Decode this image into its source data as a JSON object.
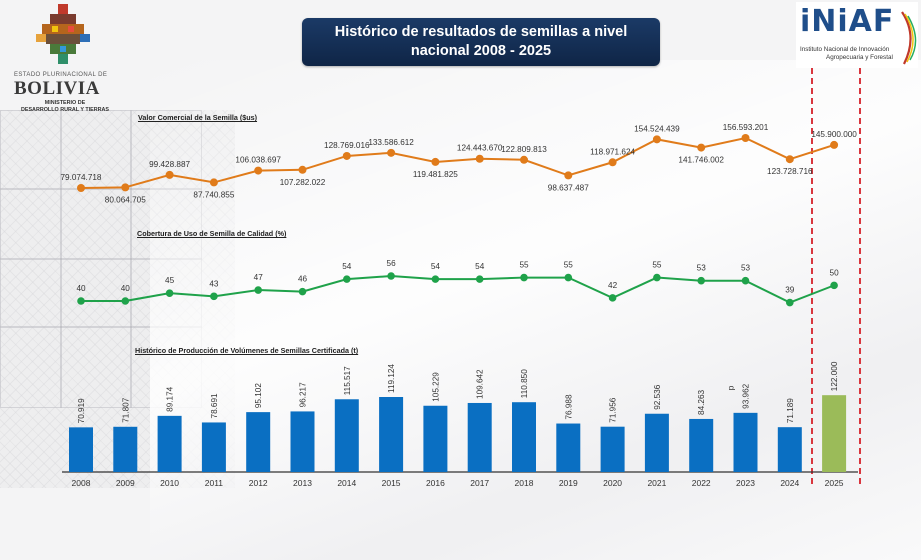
{
  "header": {
    "title_line1": "Histórico de resultados de semillas a nivel",
    "title_line2": "nacional 2008 - 2025"
  },
  "logo_left": {
    "line_small": "ESTADO PLURINACIONAL DE",
    "line_big": "BOLIVIA",
    "line_min1": "MINISTERIO DE",
    "line_min2": "DESARROLLO RURAL Y TIERRAS"
  },
  "logo_right": {
    "word": "iNiAF",
    "sub1": "Instituto Nacional de Innovación",
    "sub2": "Agropecuaria y Forestal"
  },
  "colors": {
    "orange": "#e07b1a",
    "green": "#1fa24a",
    "bar_blue": "#0a6fc2",
    "bar_green": "#9bbb59",
    "dash_red": "#d9363e",
    "title_bg": "#132d55"
  },
  "chart_data": [
    {
      "type": "line",
      "title": "Valor Comercial de la Semilla ($us)",
      "x": [
        "2008",
        "2009",
        "2010",
        "2011",
        "2012",
        "2013",
        "2014",
        "2015",
        "2016",
        "2017",
        "2018",
        "2019",
        "2020",
        "2021",
        "2022",
        "2023",
        "2024",
        "2025"
      ],
      "values": [
        79074718,
        80064705,
        99428887,
        87740855,
        106038697,
        107282022,
        128769016,
        133586612,
        119481825,
        124443670,
        122809813,
        98637487,
        118971624,
        154524439,
        141746002,
        156593201,
        123728716,
        145900000
      ],
      "labels": [
        "79.074.718",
        "80.064.705",
        "99.428.887",
        "87.740.855",
        "106.038.697",
        "107.282.022",
        "128.769.016",
        "133.586.612",
        "119.481.825",
        "124.443.670",
        "122.809.813",
        "98.637.487",
        "118.971.624",
        "154.524.439",
        "141.746.002",
        "156.593.201",
        "123.728.716",
        "145.900.000"
      ],
      "label_pos": [
        "above",
        "below",
        "above",
        "below",
        "above",
        "below",
        "above",
        "above",
        "below",
        "above",
        "above",
        "below",
        "above",
        "above",
        "below",
        "above",
        "below",
        "above"
      ],
      "color": "#e07b1a",
      "grid": false
    },
    {
      "type": "line",
      "title": "Cobertura de Uso de Semilla de Calidad (%)",
      "x": [
        "2008",
        "2009",
        "2010",
        "2011",
        "2012",
        "2013",
        "2014",
        "2015",
        "2016",
        "2017",
        "2018",
        "2019",
        "2020",
        "2021",
        "2022",
        "2023",
        "2024",
        "2025"
      ],
      "values": [
        40,
        40,
        45,
        43,
        47,
        46,
        54,
        56,
        54,
        54,
        55,
        55,
        42,
        55,
        53,
        53,
        39,
        50
      ],
      "labels": [
        "40",
        "40",
        "45",
        "43",
        "47",
        "46",
        "54",
        "56",
        "54",
        "54",
        "55",
        "55",
        "42",
        "55",
        "53",
        "53",
        "39",
        "50"
      ],
      "color": "#1fa24a",
      "grid": false
    },
    {
      "type": "bar",
      "title": "Histórico de Producción de Volúmenes de Semillas Certificada (t)",
      "categories": [
        "2008",
        "2009",
        "2010",
        "2011",
        "2012",
        "2013",
        "2014",
        "2015",
        "2016",
        "2017",
        "2018",
        "2019",
        "2020",
        "2021",
        "2022",
        "2023",
        "2024",
        "2025"
      ],
      "values": [
        70919,
        71807,
        89174,
        78691,
        95102,
        96217,
        115517,
        119124,
        105229,
        109642,
        110850,
        76988,
        71956,
        92536,
        84263,
        93962,
        71189,
        122000
      ],
      "labels": [
        "70.919",
        "71.807",
        "89.174",
        "78.691",
        "95.102",
        "96.217",
        "115.517",
        "119.124",
        "105.229",
        "109.642",
        "110.850",
        "76.988",
        "71.956",
        "92.536",
        "84.263",
        "93.962",
        "71.189",
        "122.000"
      ],
      "annotations": [
        {
          "category": "2023",
          "text": "p"
        }
      ],
      "highlight": {
        "category": "2025",
        "note": "projected, bracketed by red dashed lines"
      },
      "grid": false
    }
  ]
}
